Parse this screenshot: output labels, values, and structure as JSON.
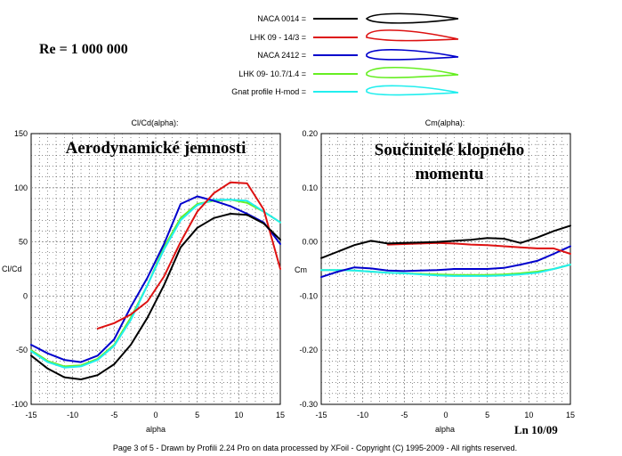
{
  "header": {
    "re_label": "Re = 1 000 000",
    "revision": "Ln 10/09"
  },
  "legend": [
    {
      "name": "NACA 0014 =",
      "color": "#000000"
    },
    {
      "name": "LHK 09 - 14/3   =",
      "color": "#dd1111"
    },
    {
      "name": "NACA 2412 =",
      "color": "#0000cc"
    },
    {
      "name": "LHK  09- 10.7/1.4 =",
      "color": "#66ee22"
    },
    {
      "name": "Gnat profile  H-mod =",
      "color": "#22eeee"
    }
  ],
  "footer": {
    "text": "Page 3 of 5   -    Drawn by Profili 2.24 Pro on data processed by  XFoil - Copyright (C) 1995-2009 - All rights reserved."
  },
  "chart_data": [
    {
      "type": "line",
      "title": "Cl/Cd(alpha):",
      "overlay_title": "Aerodynamické jemnosti",
      "xlabel": "alpha",
      "ylabel": "Cl/Cd",
      "xlim": [
        -15,
        15
      ],
      "ylim": [
        -100,
        150
      ],
      "xticks": [
        -15,
        -10,
        -5,
        0,
        5,
        10,
        15
      ],
      "yticks": [
        -100,
        -50,
        0,
        50,
        100,
        150
      ],
      "grid": true,
      "series": [
        {
          "name": "NACA 0014 =",
          "color": "#000000",
          "points": [
            [
              -15,
              -55
            ],
            [
              -13,
              -67
            ],
            [
              -11,
              -75
            ],
            [
              -9,
              -77
            ],
            [
              -7,
              -73
            ],
            [
              -5,
              -63
            ],
            [
              -3,
              -45
            ],
            [
              -1,
              -20
            ],
            [
              1,
              10
            ],
            [
              3,
              45
            ],
            [
              5,
              63
            ],
            [
              7,
              72
            ],
            [
              9,
              76
            ],
            [
              11,
              75
            ],
            [
              13,
              67
            ],
            [
              15,
              52
            ]
          ]
        },
        {
          "name": "LHK 09 - 14/3   =",
          "color": "#dd1111",
          "points": [
            [
              -7,
              -30
            ],
            [
              -5,
              -25
            ],
            [
              -3,
              -17
            ],
            [
              -1,
              -5
            ],
            [
              1,
              18
            ],
            [
              3,
              50
            ],
            [
              5,
              78
            ],
            [
              7,
              95
            ],
            [
              9,
              105
            ],
            [
              11,
              104
            ],
            [
              13,
              80
            ],
            [
              15,
              25
            ]
          ]
        },
        {
          "name": "NACA 2412 =",
          "color": "#0000cc",
          "points": [
            [
              -15,
              -45
            ],
            [
              -13,
              -53
            ],
            [
              -11,
              -59
            ],
            [
              -9,
              -61
            ],
            [
              -7,
              -55
            ],
            [
              -5,
              -40
            ],
            [
              -3,
              -10
            ],
            [
              -1,
              17
            ],
            [
              1,
              48
            ],
            [
              3,
              85
            ],
            [
              5,
              92
            ],
            [
              7,
              88
            ],
            [
              9,
              83
            ],
            [
              11,
              76
            ],
            [
              13,
              68
            ],
            [
              15,
              48
            ]
          ]
        },
        {
          "name": "LHK  09- 10.7/1.4 =",
          "color": "#66ee22",
          "points": [
            [
              -15,
              -50
            ],
            [
              -13,
              -60
            ],
            [
              -11,
              -65
            ],
            [
              -9,
              -64
            ],
            [
              -7,
              -58
            ],
            [
              -5,
              -45
            ],
            [
              -3,
              -20
            ],
            [
              -1,
              10
            ],
            [
              1,
              45
            ],
            [
              3,
              72
            ],
            [
              5,
              85
            ],
            [
              7,
              88
            ],
            [
              9,
              89
            ],
            [
              11,
              86
            ],
            [
              13,
              78
            ],
            [
              15,
              68
            ]
          ]
        },
        {
          "name": "Gnat profile  H-mod =",
          "color": "#22eeee",
          "points": [
            [
              -15,
              -51
            ],
            [
              -13,
              -61
            ],
            [
              -11,
              -66
            ],
            [
              -9,
              -65
            ],
            [
              -7,
              -59
            ],
            [
              -5,
              -46
            ],
            [
              -3,
              -22
            ],
            [
              -1,
              10
            ],
            [
              1,
              43
            ],
            [
              3,
              70
            ],
            [
              5,
              84
            ],
            [
              7,
              89
            ],
            [
              9,
              89
            ],
            [
              11,
              88
            ],
            [
              13,
              78
            ],
            [
              15,
              68
            ]
          ]
        }
      ]
    },
    {
      "type": "line",
      "title": "Cm(alpha):",
      "overlay_title": "Součinitelé klopného momentu",
      "xlabel": "alpha",
      "ylabel": "Cm",
      "xlim": [
        -15,
        15
      ],
      "ylim": [
        -0.3,
        0.2
      ],
      "xticks": [
        -15,
        -10,
        -5,
        0,
        5,
        10,
        15
      ],
      "yticks": [
        "0.20",
        "0.10",
        "0.00",
        "-0.10",
        "-0.20",
        "-0.30"
      ],
      "grid": true,
      "series": [
        {
          "name": "NACA 0014 =",
          "color": "#000000",
          "points": [
            [
              -15,
              -0.03
            ],
            [
              -13,
              -0.018
            ],
            [
              -11,
              -0.006
            ],
            [
              -9,
              0.002
            ],
            [
              -7,
              -0.003
            ],
            [
              -5,
              -0.002
            ],
            [
              -3,
              -0.001
            ],
            [
              -1,
              0.0
            ],
            [
              1,
              0.002
            ],
            [
              3,
              0.004
            ],
            [
              5,
              0.007
            ],
            [
              7,
              0.006
            ],
            [
              9,
              -0.002
            ],
            [
              11,
              0.008
            ],
            [
              13,
              0.02
            ],
            [
              15,
              0.03
            ]
          ]
        },
        {
          "name": "LHK 09 - 14/3   =",
          "color": "#dd1111",
          "points": [
            [
              -7,
              -0.005
            ],
            [
              -5,
              -0.004
            ],
            [
              -3,
              -0.003
            ],
            [
              -1,
              -0.002
            ],
            [
              1,
              -0.003
            ],
            [
              3,
              -0.005
            ],
            [
              5,
              -0.006
            ],
            [
              7,
              -0.008
            ],
            [
              9,
              -0.01
            ],
            [
              11,
              -0.012
            ],
            [
              13,
              -0.012
            ],
            [
              15,
              -0.022
            ]
          ]
        },
        {
          "name": "NACA 2412 =",
          "color": "#0000cc",
          "points": [
            [
              -15,
              -0.065
            ],
            [
              -13,
              -0.055
            ],
            [
              -11,
              -0.047
            ],
            [
              -9,
              -0.049
            ],
            [
              -7,
              -0.053
            ],
            [
              -5,
              -0.054
            ],
            [
              -3,
              -0.053
            ],
            [
              -1,
              -0.052
            ],
            [
              1,
              -0.05
            ],
            [
              3,
              -0.05
            ],
            [
              5,
              -0.05
            ],
            [
              7,
              -0.048
            ],
            [
              9,
              -0.042
            ],
            [
              11,
              -0.035
            ],
            [
              13,
              -0.022
            ],
            [
              15,
              -0.008
            ]
          ]
        },
        {
          "name": "LHK  09- 10.7/1.4 =",
          "color": "#66ee22",
          "points": [
            [
              -15,
              -0.052
            ],
            [
              -13,
              -0.052
            ],
            [
              -11,
              -0.053
            ],
            [
              -9,
              -0.055
            ],
            [
              -7,
              -0.057
            ],
            [
              -5,
              -0.058
            ],
            [
              -3,
              -0.059
            ],
            [
              -1,
              -0.06
            ],
            [
              1,
              -0.061
            ],
            [
              3,
              -0.061
            ],
            [
              5,
              -0.061
            ],
            [
              7,
              -0.06
            ],
            [
              9,
              -0.058
            ],
            [
              11,
              -0.055
            ],
            [
              13,
              -0.05
            ],
            [
              15,
              -0.042
            ]
          ]
        },
        {
          "name": "Gnat profile  H-mod =",
          "color": "#22eeee",
          "points": [
            [
              -15,
              -0.052
            ],
            [
              -13,
              -0.052
            ],
            [
              -11,
              -0.053
            ],
            [
              -9,
              -0.055
            ],
            [
              -7,
              -0.057
            ],
            [
              -5,
              -0.058
            ],
            [
              -3,
              -0.06
            ],
            [
              -1,
              -0.062
            ],
            [
              1,
              -0.063
            ],
            [
              3,
              -0.063
            ],
            [
              5,
              -0.063
            ],
            [
              7,
              -0.062
            ],
            [
              9,
              -0.06
            ],
            [
              11,
              -0.057
            ],
            [
              13,
              -0.05
            ],
            [
              15,
              -0.042
            ]
          ]
        }
      ]
    }
  ]
}
